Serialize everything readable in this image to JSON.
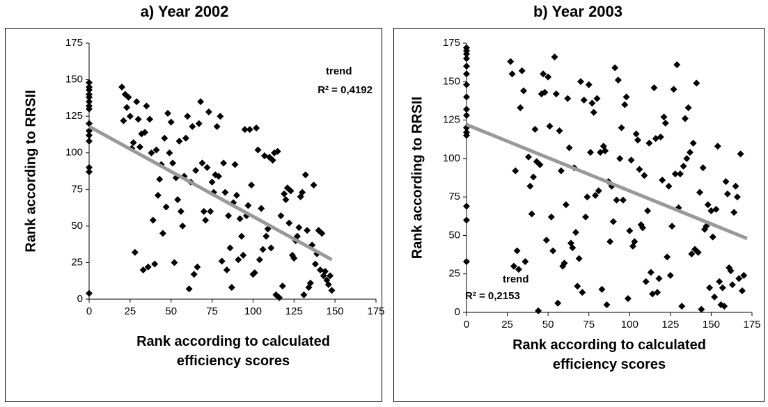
{
  "chart_data": [
    {
      "type": "scatter",
      "title": "a) Year 2002",
      "xlabel": "Rank according to calculated efficiency scores",
      "ylabel": "Rank according to RRSII",
      "xlim": [
        0,
        175
      ],
      "ylim": [
        0,
        175
      ],
      "xticks": [
        0,
        25,
        50,
        75,
        100,
        125,
        150,
        175
      ],
      "yticks": [
        0,
        25,
        50,
        75,
        100,
        125,
        150,
        175
      ],
      "series": [
        {
          "color": "#000000",
          "x": [
            0,
            0,
            0,
            0,
            0,
            0,
            0,
            0,
            0,
            0,
            0,
            0,
            0,
            0,
            0,
            20,
            22,
            21,
            24,
            23,
            25,
            26,
            27,
            29,
            30,
            28,
            31,
            32,
            33,
            34,
            35,
            36,
            37,
            38,
            39,
            40,
            41,
            42,
            43,
            44,
            45,
            46,
            47,
            48,
            49,
            50,
            51,
            52,
            53,
            54,
            55,
            56,
            57,
            58,
            59,
            60,
            61,
            62,
            63,
            64,
            65,
            66,
            67,
            68,
            69,
            70,
            71,
            72,
            73,
            74,
            75,
            76,
            77,
            78,
            79,
            80,
            81,
            82,
            83,
            84,
            85,
            86,
            87,
            88,
            89,
            90,
            91,
            92,
            93,
            94,
            95,
            96,
            97,
            98,
            99,
            100,
            101,
            102,
            103,
            104,
            105,
            106,
            107,
            108,
            109,
            110,
            111,
            112,
            113,
            114,
            115,
            116,
            117,
            118,
            119,
            120,
            121,
            122,
            123,
            124,
            125,
            126,
            127,
            128,
            129,
            130,
            131,
            132,
            133,
            134,
            135,
            136,
            137,
            138,
            139,
            140,
            141,
            142,
            143,
            144,
            145,
            146,
            147,
            148
          ],
          "values": [
            148,
            145,
            143,
            140,
            138,
            135,
            132,
            130,
            120,
            115,
            112,
            108,
            90,
            87,
            4,
            145,
            140,
            122,
            138,
            131,
            125,
            103,
            107,
            135,
            123,
            32,
            104,
            113,
            20,
            114,
            132,
            22,
            123,
            100,
            54,
            24,
            102,
            71,
            82,
            92,
            45,
            110,
            63,
            127,
            100,
            121,
            93,
            25,
            83,
            68,
            108,
            60,
            50,
            84,
            110,
            125,
            7,
            80,
            118,
            17,
            88,
            22,
            120,
            135,
            93,
            60,
            54,
            90,
            128,
            60,
            80,
            73,
            85,
            118,
            84,
            125,
            26,
            93,
            73,
            20,
            57,
            35,
            8,
            66,
            92,
            71,
            27,
            55,
            43,
            30,
            116,
            57,
            64,
            116,
            78,
            17,
            18,
            117,
            102,
            27,
            62,
            34,
            98,
            43,
            48,
            97,
            35,
            95,
            100,
            3,
            101,
            1,
            57,
            9,
            72,
            68,
            76,
            52,
            74,
            30,
            28,
            40,
            43,
            49,
            70,
            73,
            3,
            85,
            47,
            8,
            11,
            37,
            78,
            24,
            31,
            47,
            20,
            45,
            16,
            19,
            13,
            10,
            16,
            6
          ]
        }
      ],
      "trend": {
        "label": "trend",
        "r2": "R² = 0,4192",
        "x": [
          0,
          148
        ],
        "values": [
          118,
          27
        ],
        "color": "#999999"
      }
    },
    {
      "type": "scatter",
      "title": "b) Year 2003",
      "xlabel": "Rank according to calculated efficiency scores",
      "ylabel": "Rank according to RRSII",
      "xlim": [
        0,
        175
      ],
      "ylim": [
        0,
        175
      ],
      "xticks": [
        0,
        25,
        50,
        75,
        100,
        125,
        150,
        175
      ],
      "yticks": [
        0,
        25,
        50,
        75,
        100,
        125,
        150,
        175
      ],
      "series": [
        {
          "color": "#000000",
          "x": [
            0,
            0,
            0,
            0,
            0,
            0,
            0,
            0,
            0,
            0,
            0,
            0,
            0,
            0,
            0,
            0,
            27,
            28,
            29,
            30,
            31,
            32,
            33,
            34,
            35,
            36,
            38,
            39,
            40,
            41,
            42,
            43,
            44,
            45,
            46,
            47,
            48,
            49,
            50,
            51,
            52,
            53,
            54,
            55,
            56,
            57,
            58,
            59,
            60,
            61,
            62,
            63,
            64,
            65,
            66,
            67,
            68,
            69,
            70,
            71,
            72,
            73,
            74,
            75,
            76,
            77,
            78,
            79,
            80,
            81,
            82,
            83,
            84,
            85,
            86,
            87,
            88,
            89,
            90,
            91,
            92,
            93,
            94,
            95,
            96,
            97,
            98,
            99,
            100,
            101,
            102,
            103,
            104,
            105,
            106,
            107,
            108,
            109,
            110,
            111,
            112,
            113,
            114,
            115,
            116,
            117,
            118,
            119,
            120,
            121,
            122,
            123,
            124,
            125,
            126,
            127,
            128,
            129,
            130,
            131,
            132,
            133,
            134,
            135,
            136,
            137,
            138,
            139,
            140,
            141,
            142,
            143,
            144,
            145,
            146,
            147,
            148,
            149,
            150,
            151,
            152,
            153,
            154,
            155,
            156,
            157,
            158,
            159,
            160,
            161,
            162,
            163,
            164,
            165,
            166,
            167,
            168,
            169,
            170
          ],
          "values": [
            172,
            170,
            168,
            165,
            160,
            155,
            148,
            140,
            132,
            128,
            120,
            117,
            115,
            69,
            60,
            33,
            163,
            155,
            30,
            92,
            40,
            28,
            133,
            157,
            144,
            33,
            101,
            82,
            64,
            88,
            119,
            98,
            1,
            96,
            142,
            155,
            143,
            47,
            153,
            121,
            62,
            40,
            166,
            142,
            6,
            118,
            92,
            30,
            32,
            70,
            139,
            107,
            45,
            42,
            94,
            52,
            17,
            35,
            150,
            13,
            138,
            62,
            75,
            148,
            104,
            136,
            130,
            76,
            139,
            79,
            104,
            15,
            108,
            105,
            5,
            85,
            46,
            82,
            59,
            159,
            73,
            151,
            100,
            120,
            73,
            135,
            140,
            9,
            53,
            99,
            43,
            46,
            116,
            112,
            93,
            57,
            55,
            89,
            20,
            66,
            110,
            26,
            12,
            146,
            113,
            13,
            22,
            114,
            86,
            127,
            123,
            36,
            82,
            24,
            56,
            145,
            90,
            161,
            68,
            90,
            4,
            95,
            126,
            100,
            133,
            104,
            38,
            110,
            41,
            149,
            39,
            78,
            2,
            94,
            54,
            56,
            70,
            16,
            66,
            49,
            10,
            67,
            108,
            20,
            5,
            16,
            4,
            85,
            77,
            29,
            27,
            18,
            65,
            82,
            75,
            22,
            103,
            14,
            24
          ]
        }
      ],
      "trend": {
        "label": "trend",
        "r2": "R² = 0,2153",
        "x": [
          0,
          172
        ],
        "values": [
          122,
          48
        ],
        "color": "#999999"
      }
    }
  ]
}
